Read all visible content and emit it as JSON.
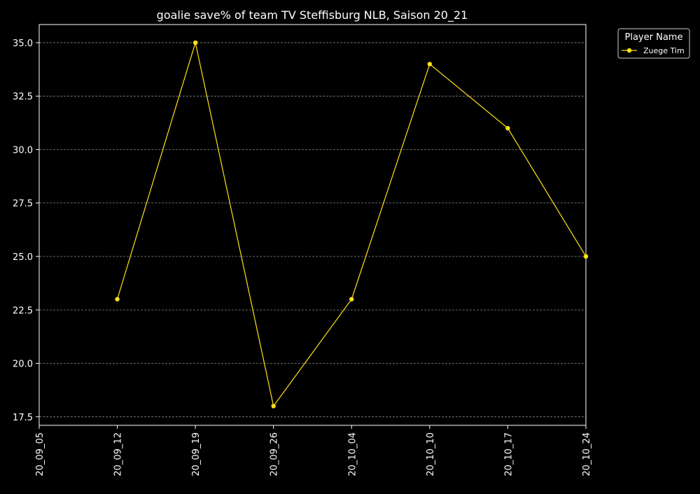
{
  "chart_data": {
    "type": "line",
    "title": "goalie save% of team TV Steffisburg NLB, Saison 20_21",
    "xlabel": "",
    "ylabel": "",
    "x_ticks": [
      "20_09_05",
      "20_09_12",
      "20_09_19",
      "20_09_26",
      "20_10_04",
      "20_10_10",
      "20_10_17",
      "20_10_24"
    ],
    "y_ticks": [
      "17.5",
      "20.0",
      "22.5",
      "25.0",
      "27.5",
      "30.0",
      "32.5",
      "35.0"
    ],
    "ylim": [
      17.1,
      35.85
    ],
    "grid": "horizontal dashed",
    "legend": {
      "title": "Player Name",
      "placement": "outside-top-right"
    },
    "series": [
      {
        "name": "Zuege Tim",
        "color": "#FFE11A",
        "points": [
          {
            "x": "20_09_12",
            "y": 23.0
          },
          {
            "x": "20_09_19",
            "y": 35.0
          },
          {
            "x": "20_09_26",
            "y": 18.0
          },
          {
            "x": "20_10_04",
            "y": 23.0
          },
          {
            "x": "20_10_10",
            "y": 34.0
          },
          {
            "x": "20_10_17",
            "y": 31.0
          },
          {
            "x": "20_10_24",
            "y": 25.0
          }
        ]
      }
    ],
    "colors": {
      "background": "#000000",
      "axes": "#FFFFFF",
      "text": "#FFFFFF",
      "grid": "#888888"
    }
  }
}
